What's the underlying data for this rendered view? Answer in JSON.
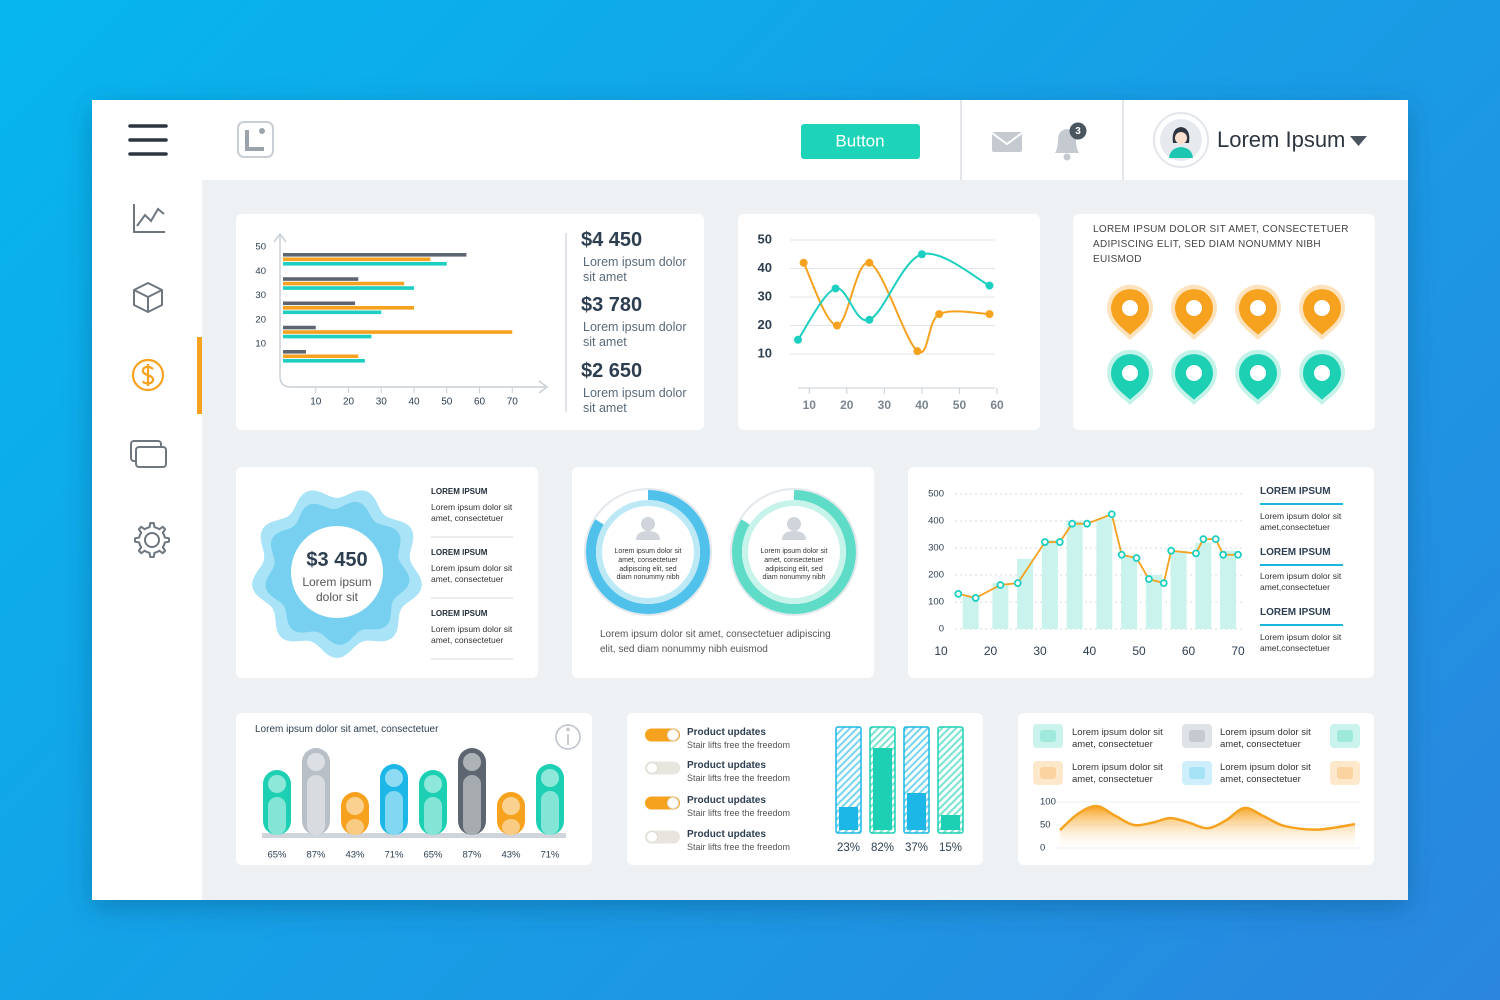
{
  "header": {
    "button": "Button",
    "notifications": 3,
    "user": "Lorem Ipsum"
  },
  "stats": [
    {
      "amount": "$4 450",
      "text": "Lorem ipsum dolor sit amet"
    },
    {
      "amount": "$3 780",
      "text": "Lorem ipsum dolor sit amet"
    },
    {
      "amount": "$2 650",
      "text": "Lorem ipsum dolor sit amet"
    }
  ],
  "pins_text": "LOREM IPSUM DOLOR SIT AMET, CONSECTETUER ADIPISCING ELIT, SED DIAM NONUMMY NIBH EUISMOD",
  "badge": {
    "amount": "$3 450",
    "text": "Lorem ipsum dolor sit"
  },
  "badge_items": [
    {
      "title": "LOREM IPSUM",
      "text": "Lorem ipsum dolor sit amet, consectetuer"
    },
    {
      "title": "LOREM IPSUM",
      "text": "Lorem ipsum dolor sit amet, consectetuer"
    },
    {
      "title": "LOREM IPSUM",
      "text": "Lorem ipsum dolor sit amet, consectetuer"
    }
  ],
  "rings": {
    "labels": [
      "Lorem ipsum dolor sit amet, consectetuer adipiscing elit, sed diam nonummy nibh",
      "Lorem ipsum dolor sit amet, consectetuer adipiscing elit, sed diam nonummy nibh"
    ],
    "caption": "Lorem ipsum dolor sit amet, consectetuer adipiscing elit, sed diam nonummy nibh euismod"
  },
  "combo_items": [
    {
      "title": "LOREM IPSUM",
      "text": "Lorem ipsum dolor sit amet,consectetuer"
    },
    {
      "title": "LOREM IPSUM",
      "text": "Lorem ipsum dolor sit amet,consectetuer"
    },
    {
      "title": "LOREM IPSUM",
      "text": "Lorem ipsum dolor sit amet,consectetuer"
    }
  ],
  "toggles": [
    {
      "title": "Product updates",
      "text": "Stair lifts free the freedom",
      "on": true
    },
    {
      "title": "Product updates",
      "text": "Stair lifts free the freedom",
      "on": false
    },
    {
      "title": "Product updates",
      "text": "Stair lifts free the freedom",
      "on": true
    },
    {
      "title": "Product updates",
      "text": "Stair lifts free the freedom",
      "on": false
    }
  ],
  "legend_items": [
    "Lorem ipsum dolor sit amet, consectetuer",
    "Lorem ipsum dolor sit amet, consectetuer",
    "Lorem ipsum dolor sit amet, consectetuer",
    "Lorem ipsum dolor sit amet, consectetuer"
  ],
  "chart_data": [
    {
      "type": "hbar",
      "categories": [
        "50",
        "40",
        "30",
        "20",
        "10"
      ],
      "series": [
        {
          "color": "#5d6670",
          "values": [
            56,
            23,
            22,
            10,
            7
          ]
        },
        {
          "color": "#f6a21e",
          "values": [
            45,
            37,
            40,
            70,
            23
          ]
        },
        {
          "color": "#1ccfc0",
          "values": [
            50,
            40,
            30,
            27,
            25
          ]
        }
      ],
      "xlim": [
        0,
        80
      ],
      "xticks": [
        10,
        20,
        30,
        40,
        50,
        60,
        70
      ]
    },
    {
      "type": "line",
      "series": [
        {
          "color": "#f6a21e",
          "x": [
            8.5,
            17.4,
            26,
            38.8,
            44.6,
            58
          ],
          "values": [
            42,
            20,
            42,
            11,
            24,
            24
          ]
        },
        {
          "color": "#1ccfc0",
          "x": [
            7,
            17,
            26,
            40,
            58
          ],
          "values": [
            15,
            33,
            22,
            45,
            34
          ]
        }
      ],
      "xlim": [
        7,
        60
      ],
      "xticks": [
        10,
        20,
        30,
        40,
        50,
        60
      ],
      "ylim": [
        0,
        52
      ],
      "yticks": [
        10,
        20,
        30,
        40,
        50
      ],
      "grid": true
    },
    {
      "type": "combo",
      "series": [
        {
          "kind": "bar",
          "color": "#c9f3ec",
          "x": [
            16,
            22,
            27,
            32,
            37,
            43,
            48,
            53,
            58,
            63,
            68
          ],
          "values": [
            120,
            170,
            260,
            330,
            400,
            410,
            270,
            200,
            290,
            320,
            290
          ]
        },
        {
          "kind": "line",
          "color": "#f6a21e",
          "marker": "#1ccfc0",
          "x": [
            13.5,
            17,
            22,
            25.5,
            31,
            34,
            36.5,
            39.5,
            44.5,
            46.5,
            49.5,
            52,
            55,
            56.5,
            61.5,
            63,
            65.5,
            67,
            70
          ],
          "values": [
            130,
            115,
            163,
            170,
            322,
            322,
            390,
            390,
            425,
            275,
            263,
            185,
            170,
            290,
            280,
            333,
            333,
            275,
            275
          ]
        }
      ],
      "xlim": [
        10,
        70
      ],
      "xticks": [
        10,
        20,
        30,
        40,
        50,
        60,
        70
      ],
      "ylim": [
        0,
        500
      ],
      "yticks": [
        0,
        100,
        200,
        300,
        400,
        500
      ],
      "grid": true
    },
    {
      "type": "capsule",
      "title": "Lorem ipsum dolor sit amet, consectetuer",
      "values": [
        65,
        87,
        43,
        71,
        65,
        87,
        43,
        71
      ],
      "value_labels": [
        "65%",
        "87%",
        "43%",
        "71%",
        "65%",
        "87%",
        "43%",
        "71%"
      ],
      "colors": [
        "#1dd0b4",
        "#b8bfc7",
        "#f6a21e",
        "#1cb7e6",
        "#1dd0b4",
        "#5d6670",
        "#f6a21e",
        "#1dd0b4"
      ],
      "ylim": [
        0,
        100
      ]
    },
    {
      "type": "progress",
      "values": [
        23,
        82,
        37,
        15
      ],
      "value_labels": [
        "23%",
        "82%",
        "37%",
        "15%"
      ],
      "colors": [
        "#1cb7e6",
        "#1dd0b4",
        "#1cb7e6",
        "#1dd0b4"
      ],
      "ylim": [
        0,
        100
      ]
    },
    {
      "type": "area",
      "values": [
        39,
        75,
        91,
        70,
        50,
        55,
        65,
        55,
        43,
        60,
        87,
        70,
        50,
        42,
        40,
        45,
        52
      ],
      "color": "#f6a21e",
      "ylim": [
        0,
        100
      ],
      "yticks": [
        0,
        50,
        100
      ]
    }
  ]
}
